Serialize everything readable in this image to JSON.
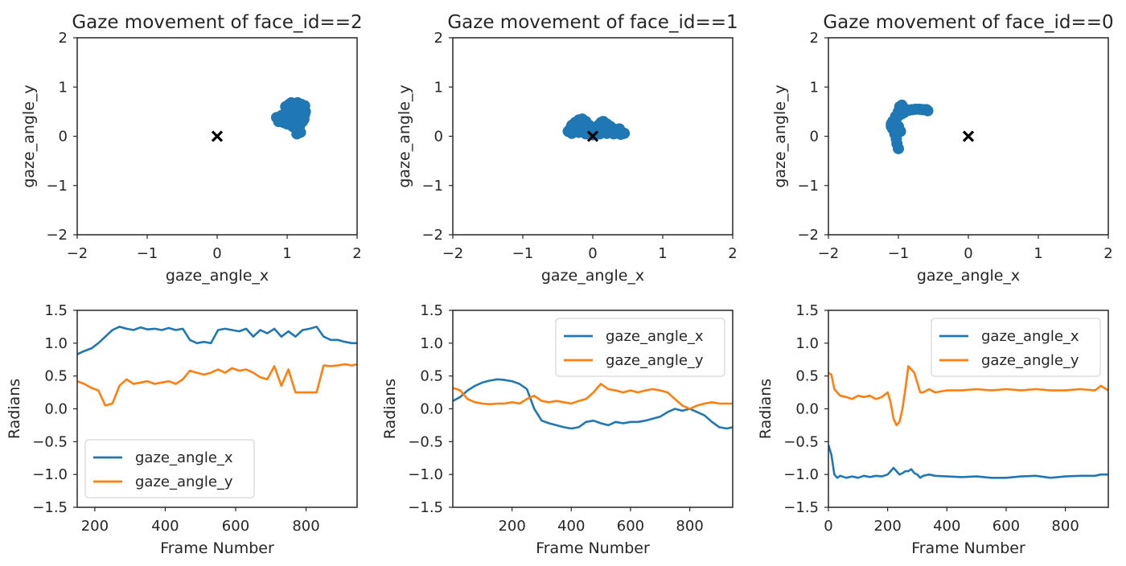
{
  "chart_data": [
    {
      "type": "scatter",
      "title": "Gaze movement of face_id==2",
      "xlabel": "gaze_angle_x",
      "ylabel": "gaze_angle_y",
      "xlim": [
        -2,
        2
      ],
      "ylim": [
        -2,
        2
      ],
      "xticks": [
        -2,
        -1,
        0,
        1,
        2
      ],
      "yticks": [
        -2,
        -1,
        0,
        1,
        2
      ],
      "series": [
        {
          "color": "#1f77b4",
          "points": [
            [
              0.85,
              0.38
            ],
            [
              0.9,
              0.32
            ],
            [
              0.95,
              0.28
            ],
            [
              1.0,
              0.35
            ],
            [
              1.02,
              0.45
            ],
            [
              1.05,
              0.55
            ],
            [
              1.08,
              0.62
            ],
            [
              1.1,
              0.66
            ],
            [
              1.15,
              0.68
            ],
            [
              1.2,
              0.65
            ],
            [
              1.22,
              0.55
            ],
            [
              1.25,
              0.45
            ],
            [
              1.24,
              0.35
            ],
            [
              1.2,
              0.28
            ],
            [
              1.18,
              0.22
            ],
            [
              1.15,
              0.18
            ],
            [
              1.12,
              0.25
            ],
            [
              1.08,
              0.3
            ],
            [
              1.05,
              0.4
            ],
            [
              1.1,
              0.5
            ],
            [
              1.15,
              0.55
            ],
            [
              1.18,
              0.45
            ],
            [
              1.12,
              0.38
            ],
            [
              1.0,
              0.5
            ],
            [
              0.98,
              0.6
            ],
            [
              1.03,
              0.65
            ],
            [
              1.2,
              0.6
            ],
            [
              1.26,
              0.5
            ],
            [
              1.16,
              0.12
            ],
            [
              1.14,
              0.05
            ],
            [
              0.92,
              0.42
            ],
            [
              1.08,
              0.2
            ],
            [
              1.22,
              0.3
            ],
            [
              1.0,
              0.25
            ],
            [
              1.25,
              0.62
            ],
            [
              1.06,
              0.68
            ],
            [
              0.88,
              0.3
            ],
            [
              1.19,
              0.08
            ]
          ]
        },
        {
          "marker": "x",
          "color": "#000000",
          "points": [
            [
              0,
              0
            ]
          ]
        }
      ]
    },
    {
      "type": "scatter",
      "title": "Gaze movement of face_id==1",
      "xlabel": "gaze_angle_x",
      "ylabel": "gaze_angle_y",
      "xlim": [
        -2,
        2
      ],
      "ylim": [
        -2,
        2
      ],
      "xticks": [
        -2,
        -1,
        0,
        1,
        2
      ],
      "yticks": [
        -2,
        -1,
        0,
        1,
        2
      ],
      "series": [
        {
          "color": "#1f77b4",
          "points": [
            [
              -0.35,
              0.1
            ],
            [
              -0.32,
              0.15
            ],
            [
              -0.3,
              0.22
            ],
            [
              -0.25,
              0.28
            ],
            [
              -0.2,
              0.33
            ],
            [
              -0.15,
              0.35
            ],
            [
              -0.1,
              0.3
            ],
            [
              -0.05,
              0.22
            ],
            [
              0.0,
              0.15
            ],
            [
              0.05,
              0.1
            ],
            [
              0.1,
              0.18
            ],
            [
              0.12,
              0.28
            ],
            [
              0.15,
              0.3
            ],
            [
              0.2,
              0.25
            ],
            [
              0.25,
              0.2
            ],
            [
              0.3,
              0.15
            ],
            [
              0.35,
              0.12
            ],
            [
              0.4,
              0.1
            ],
            [
              0.45,
              0.06
            ],
            [
              0.4,
              0.04
            ],
            [
              0.3,
              0.05
            ],
            [
              0.2,
              0.06
            ],
            [
              0.1,
              0.05
            ],
            [
              0.0,
              0.03
            ],
            [
              -0.1,
              0.05
            ],
            [
              -0.2,
              0.08
            ],
            [
              -0.3,
              0.06
            ],
            [
              -0.25,
              0.18
            ],
            [
              -0.15,
              0.2
            ],
            [
              0.18,
              0.12
            ],
            [
              0.28,
              0.08
            ],
            [
              0.38,
              0.15
            ],
            [
              -0.05,
              0.08
            ],
            [
              0.08,
              0.22
            ]
          ]
        },
        {
          "marker": "x",
          "color": "#000000",
          "points": [
            [
              0,
              0
            ]
          ]
        }
      ]
    },
    {
      "type": "scatter",
      "title": "Gaze movement of face_id==0",
      "xlabel": "gaze_angle_x",
      "ylabel": "gaze_angle_y",
      "xlim": [
        -2,
        2
      ],
      "ylim": [
        -2,
        2
      ],
      "xticks": [
        -2,
        -1,
        0,
        1,
        2
      ],
      "yticks": [
        -2,
        -1,
        0,
        1,
        2
      ],
      "series": [
        {
          "color": "#1f77b4",
          "points": [
            [
              -1.1,
              0.25
            ],
            [
              -1.08,
              0.15
            ],
            [
              -1.05,
              0.05
            ],
            [
              -1.03,
              -0.05
            ],
            [
              -1.02,
              -0.15
            ],
            [
              -1.0,
              -0.25
            ],
            [
              -1.06,
              0.3
            ],
            [
              -1.04,
              0.4
            ],
            [
              -1.0,
              0.5
            ],
            [
              -0.98,
              0.6
            ],
            [
              -0.95,
              0.63
            ],
            [
              -0.9,
              0.55
            ],
            [
              -0.85,
              0.53
            ],
            [
              -0.8,
              0.54
            ],
            [
              -0.75,
              0.55
            ],
            [
              -0.7,
              0.55
            ],
            [
              -0.65,
              0.54
            ],
            [
              -0.6,
              0.54
            ],
            [
              -0.58,
              0.52
            ],
            [
              -1.08,
              0.3
            ],
            [
              -1.02,
              0.38
            ],
            [
              -0.96,
              0.45
            ],
            [
              -1.0,
              0.2
            ],
            [
              -0.97,
              0.1
            ],
            [
              -1.1,
              0.2
            ],
            [
              -1.05,
              0.32
            ],
            [
              -0.92,
              0.48
            ],
            [
              -1.03,
              0.1
            ]
          ]
        },
        {
          "marker": "x",
          "color": "#000000",
          "points": [
            [
              0,
              0
            ]
          ]
        }
      ]
    },
    {
      "type": "line",
      "xlabel": "Frame Number",
      "ylabel": "Radians",
      "xlim": [
        150,
        945
      ],
      "ylim": [
        -1.5,
        1.5
      ],
      "xticks": [
        200,
        400,
        600,
        800
      ],
      "yticks": [
        -1.5,
        -1.0,
        -0.5,
        0.0,
        0.5,
        1.0,
        1.5
      ],
      "legend": "lower-left",
      "x": [
        150,
        170,
        190,
        210,
        230,
        250,
        270,
        290,
        310,
        330,
        350,
        370,
        390,
        410,
        430,
        450,
        470,
        490,
        510,
        530,
        550,
        570,
        590,
        610,
        630,
        650,
        670,
        690,
        710,
        730,
        750,
        770,
        790,
        810,
        830,
        850,
        870,
        890,
        910,
        930,
        945
      ],
      "series": [
        {
          "name": "gaze_angle_x",
          "color": "#1f77b4",
          "values": [
            0.83,
            0.88,
            0.92,
            1.0,
            1.1,
            1.2,
            1.25,
            1.22,
            1.2,
            1.24,
            1.21,
            1.22,
            1.2,
            1.23,
            1.2,
            1.22,
            1.05,
            1.0,
            1.02,
            1.0,
            1.2,
            1.22,
            1.2,
            1.18,
            1.22,
            1.1,
            1.2,
            1.15,
            1.22,
            1.1,
            1.18,
            1.1,
            1.2,
            1.22,
            1.25,
            1.1,
            1.05,
            1.05,
            1.02,
            1.0,
            1.0
          ]
        },
        {
          "name": "gaze_angle_y",
          "color": "#ff7f0e",
          "values": [
            0.42,
            0.38,
            0.32,
            0.28,
            0.05,
            0.08,
            0.35,
            0.45,
            0.38,
            0.4,
            0.42,
            0.38,
            0.4,
            0.42,
            0.38,
            0.45,
            0.58,
            0.55,
            0.52,
            0.55,
            0.6,
            0.55,
            0.62,
            0.58,
            0.6,
            0.55,
            0.48,
            0.45,
            0.65,
            0.35,
            0.6,
            0.25,
            0.25,
            0.25,
            0.25,
            0.66,
            0.65,
            0.66,
            0.68,
            0.66,
            0.68
          ]
        }
      ]
    },
    {
      "type": "line",
      "xlabel": "Frame Number",
      "ylabel": "Radians",
      "xlim": [
        0,
        945
      ],
      "ylim": [
        -1.5,
        1.5
      ],
      "xticks": [
        200,
        400,
        600,
        800
      ],
      "yticks": [
        -1.5,
        -1.0,
        -0.5,
        0.0,
        0.5,
        1.0,
        1.5
      ],
      "legend": "top-right",
      "x": [
        0,
        25,
        50,
        75,
        100,
        125,
        150,
        175,
        200,
        225,
        250,
        275,
        300,
        325,
        350,
        375,
        400,
        425,
        450,
        475,
        500,
        525,
        550,
        575,
        600,
        625,
        650,
        675,
        700,
        725,
        750,
        775,
        800,
        825,
        850,
        875,
        900,
        925,
        945
      ],
      "series": [
        {
          "name": "gaze_angle_x",
          "color": "#1f77b4",
          "values": [
            0.12,
            0.18,
            0.28,
            0.35,
            0.4,
            0.43,
            0.45,
            0.44,
            0.42,
            0.38,
            0.3,
            0.0,
            -0.18,
            -0.22,
            -0.25,
            -0.28,
            -0.3,
            -0.28,
            -0.2,
            -0.18,
            -0.22,
            -0.25,
            -0.2,
            -0.22,
            -0.2,
            -0.2,
            -0.18,
            -0.15,
            -0.12,
            -0.05,
            0.0,
            -0.03,
            0.0,
            -0.05,
            -0.1,
            -0.2,
            -0.28,
            -0.3,
            -0.28
          ]
        },
        {
          "name": "gaze_angle_y",
          "color": "#ff7f0e",
          "values": [
            0.32,
            0.28,
            0.15,
            0.1,
            0.08,
            0.07,
            0.08,
            0.08,
            0.1,
            0.08,
            0.15,
            0.2,
            0.12,
            0.1,
            0.12,
            0.1,
            0.08,
            0.12,
            0.15,
            0.25,
            0.38,
            0.3,
            0.28,
            0.25,
            0.28,
            0.25,
            0.28,
            0.3,
            0.28,
            0.25,
            0.15,
            0.05,
            0.0,
            0.05,
            0.08,
            0.1,
            0.08,
            0.08,
            0.08
          ]
        }
      ]
    },
    {
      "type": "line",
      "xlabel": "Frame Number",
      "ylabel": "Radians",
      "xlim": [
        0,
        945
      ],
      "ylim": [
        -1.5,
        1.5
      ],
      "xticks": [
        0,
        200,
        400,
        600,
        800
      ],
      "yticks": [
        -1.5,
        -1.0,
        -0.5,
        0.0,
        0.5,
        1.0,
        1.5
      ],
      "legend": "top-right",
      "x": [
        0,
        10,
        20,
        30,
        40,
        60,
        80,
        100,
        120,
        140,
        160,
        180,
        200,
        210,
        220,
        230,
        240,
        250,
        260,
        270,
        280,
        290,
        300,
        310,
        320,
        340,
        360,
        400,
        450,
        500,
        550,
        600,
        650,
        700,
        750,
        800,
        850,
        900,
        920,
        945
      ],
      "series": [
        {
          "name": "gaze_angle_x",
          "color": "#1f77b4",
          "values": [
            -0.55,
            -0.7,
            -1.0,
            -1.05,
            -1.02,
            -1.05,
            -1.03,
            -1.05,
            -1.02,
            -1.04,
            -1.02,
            -1.03,
            -1.0,
            -0.95,
            -0.9,
            -0.95,
            -1.0,
            -0.98,
            -0.95,
            -0.95,
            -0.92,
            -0.98,
            -1.0,
            -1.05,
            -1.02,
            -1.0,
            -1.02,
            -1.03,
            -1.04,
            -1.03,
            -1.05,
            -1.05,
            -1.03,
            -1.02,
            -1.05,
            -1.03,
            -1.02,
            -1.02,
            -1.0,
            -1.0
          ]
        },
        {
          "name": "gaze_angle_y",
          "color": "#ff7f0e",
          "values": [
            0.55,
            0.52,
            0.3,
            0.25,
            0.2,
            0.18,
            0.15,
            0.2,
            0.18,
            0.2,
            0.15,
            0.18,
            0.25,
            0.1,
            -0.15,
            -0.25,
            -0.2,
            0.0,
            0.3,
            0.65,
            0.6,
            0.55,
            0.4,
            0.25,
            0.25,
            0.3,
            0.25,
            0.28,
            0.28,
            0.3,
            0.28,
            0.3,
            0.28,
            0.3,
            0.28,
            0.28,
            0.3,
            0.28,
            0.35,
            0.28
          ]
        }
      ]
    }
  ]
}
